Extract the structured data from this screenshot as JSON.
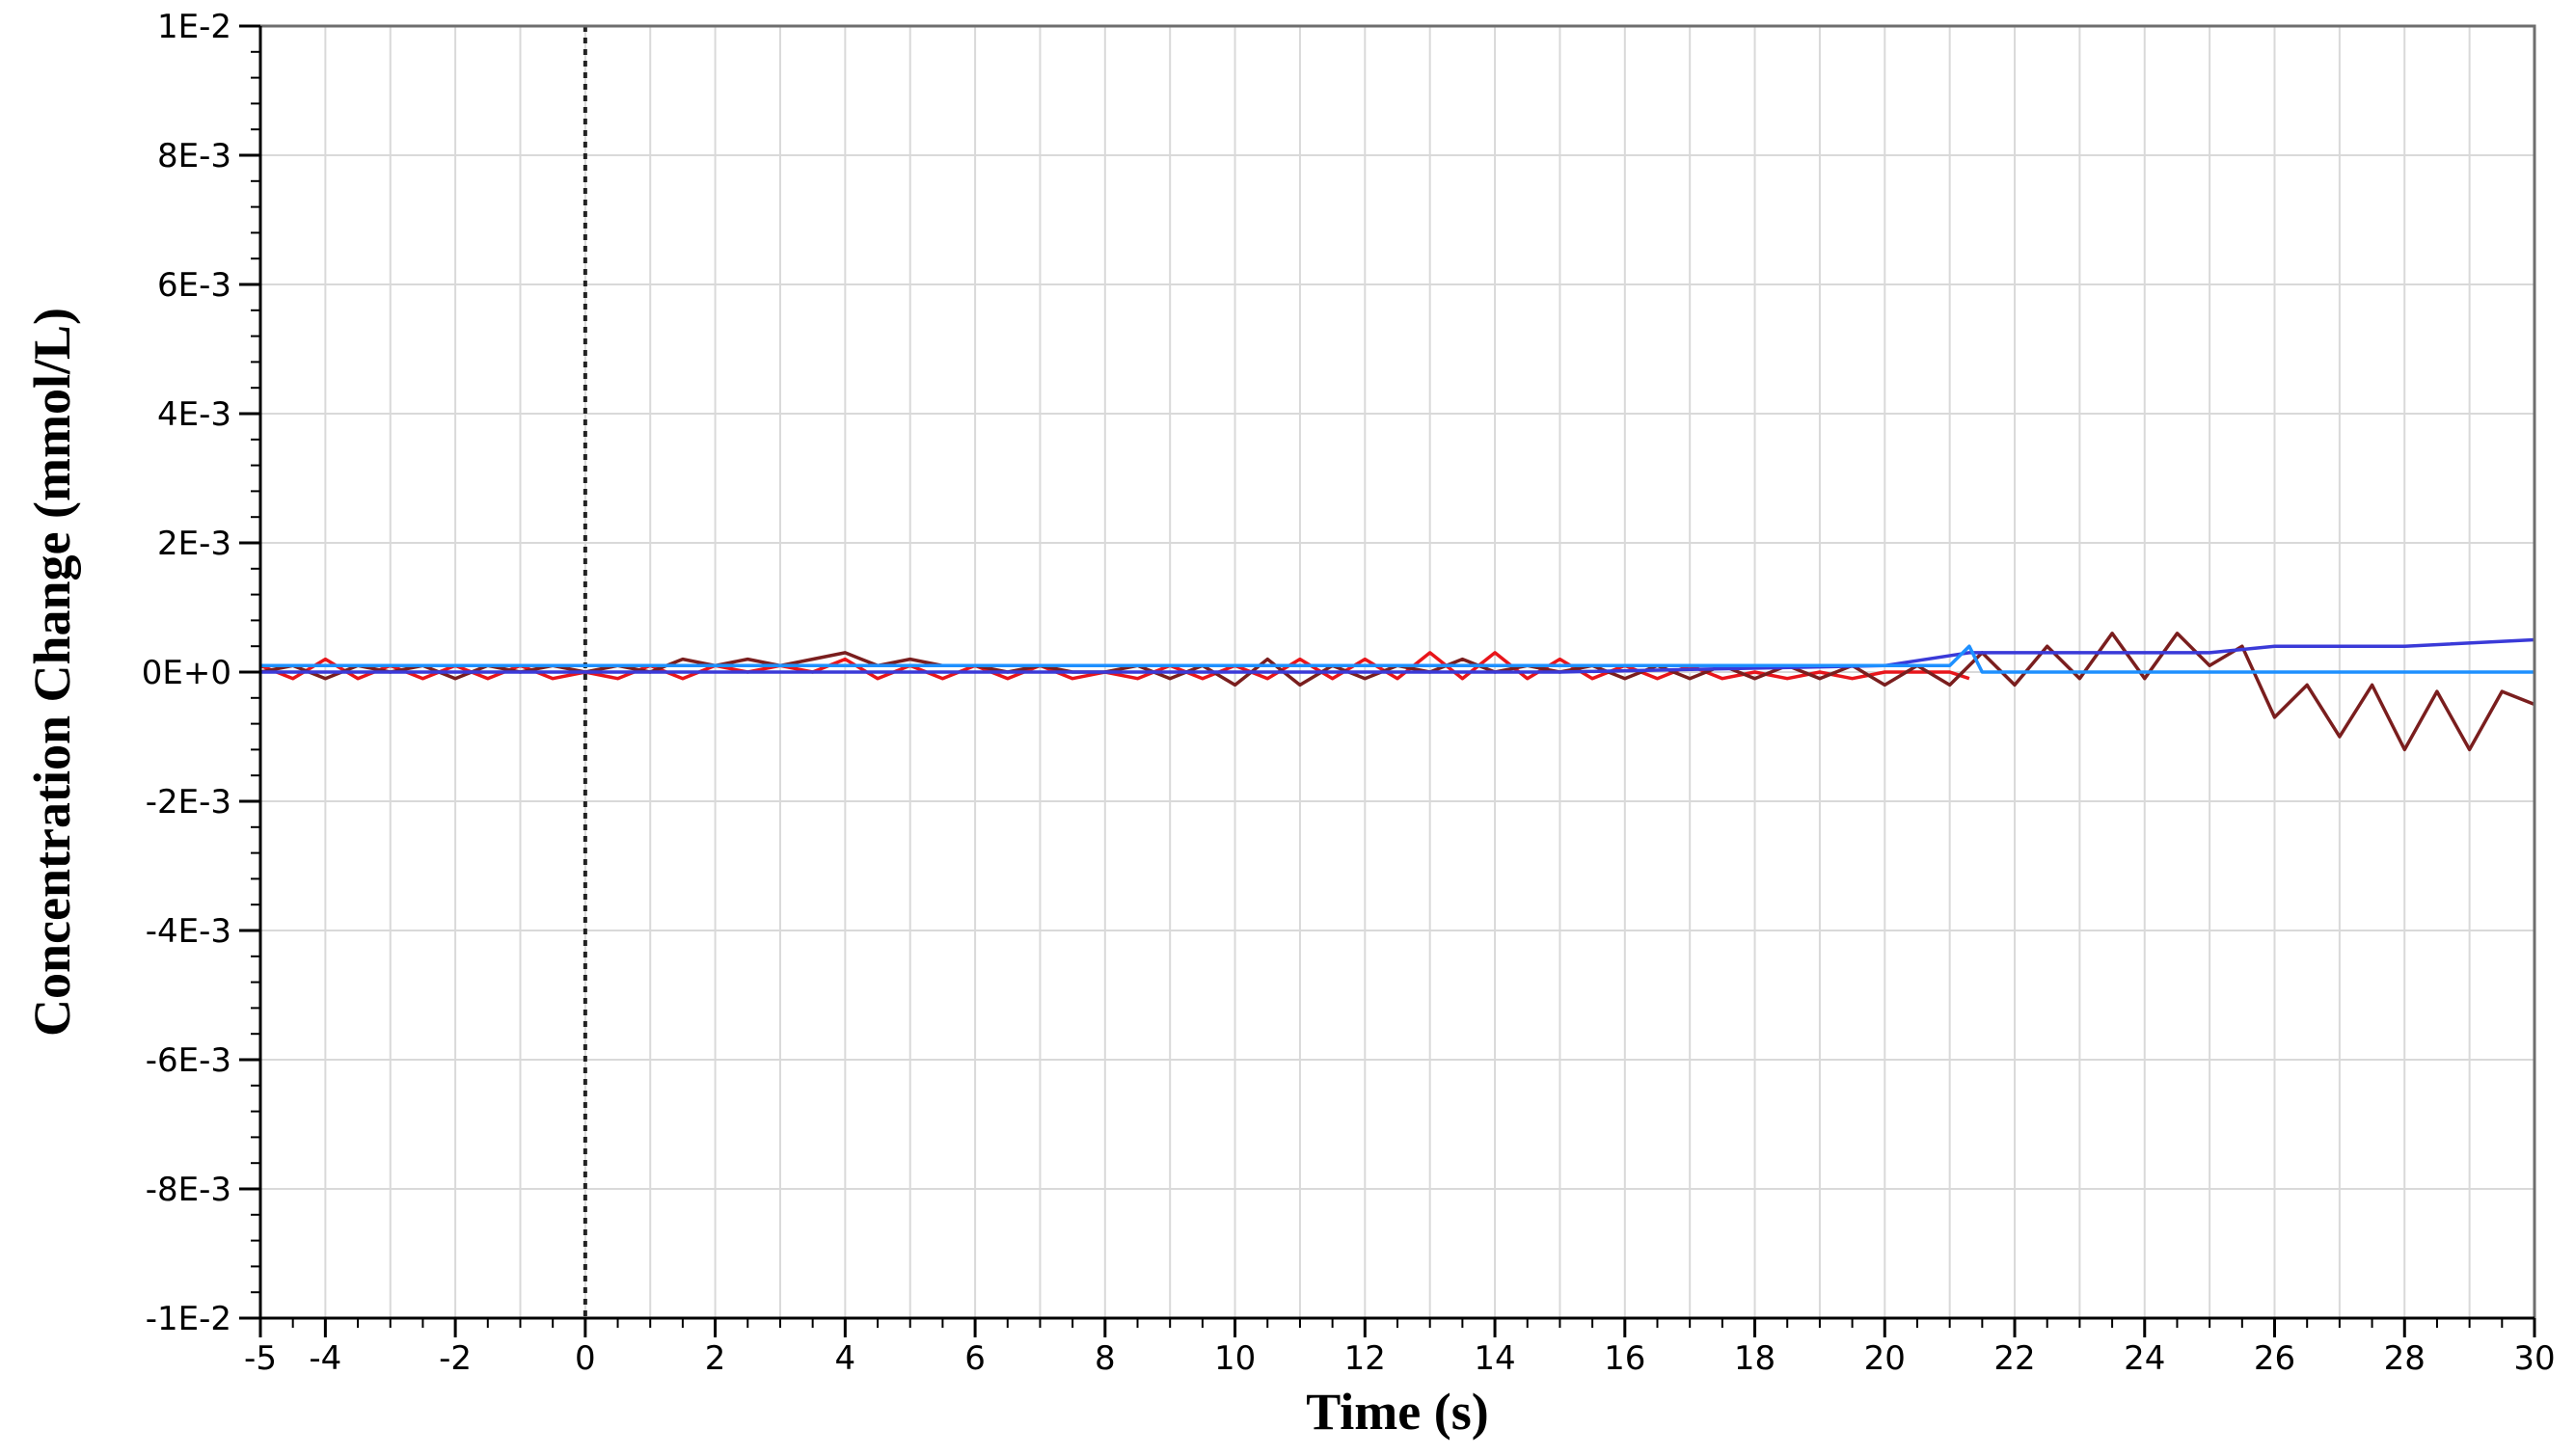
{
  "chart_data": {
    "type": "line",
    "title": "",
    "xlabel": "Time (s)",
    "ylabel": "Concentration Change (mmol/L)",
    "xlim": [
      -5,
      30
    ],
    "ylim": [
      -0.01,
      0.01
    ],
    "x_ticks": [
      -5,
      -4,
      -2,
      0,
      2,
      4,
      6,
      8,
      10,
      12,
      14,
      16,
      18,
      20,
      22,
      24,
      26,
      28,
      30
    ],
    "x_tick_labels": [
      "-5",
      "-4",
      "-2",
      "0",
      "2",
      "4",
      "6",
      "8",
      "10",
      "12",
      "14",
      "16",
      "18",
      "20",
      "22",
      "24",
      "26",
      "28",
      "30"
    ],
    "y_ticks": [
      0.01,
      0.008,
      0.006,
      0.004,
      0.002,
      0,
      -0.002,
      -0.004,
      -0.006,
      -0.008,
      -0.01
    ],
    "y_tick_labels": [
      "1E-2",
      "8E-3",
      "6E-3",
      "4E-3",
      "2E-3",
      "0E+0",
      "-2E-3",
      "-4E-3",
      "-6E-3",
      "-8E-3",
      "-1E-2"
    ],
    "grid": true,
    "legend": "none",
    "marker_line_x": 0,
    "colors": {
      "grid": "#d9d9d9",
      "red": "#e8151b",
      "dark_red": "#7a1e1e",
      "navy": "#3a3ad8",
      "light_blue": "#1e90ff"
    },
    "series": [
      {
        "color": "#e8151b",
        "x": [
          -5,
          -4.5,
          -4,
          -3.5,
          -3,
          -2.5,
          -2,
          -1.5,
          -1,
          -0.5,
          0,
          0.5,
          1,
          1.5,
          2,
          2.5,
          3,
          3.5,
          4,
          4.5,
          5,
          5.5,
          6,
          6.5,
          7,
          7.5,
          8,
          8.5,
          9,
          9.5,
          10,
          10.5,
          11,
          11.5,
          12,
          12.5,
          13,
          13.5,
          14,
          14.5,
          15,
          15.5,
          16,
          16.5,
          17,
          17.5,
          18,
          18.5,
          19,
          19.5,
          20,
          20.5,
          21,
          21.3
        ],
        "y": [
          0.0001,
          -0.0001,
          0.0002,
          -0.0001,
          0.0001,
          -0.0001,
          0.0001,
          -0.0001,
          0.0001,
          -0.0001,
          0,
          -0.0001,
          0.0001,
          -0.0001,
          0.0001,
          0,
          0.0001,
          0,
          0.0002,
          -0.0001,
          0.0001,
          -0.0001,
          0.0001,
          -0.0001,
          0.0001,
          -0.0001,
          0,
          -0.0001,
          0.0001,
          -0.0001,
          0.0001,
          -0.0001,
          0.0002,
          -0.0001,
          0.0002,
          -0.0001,
          0.0003,
          -0.0001,
          0.0003,
          -0.0001,
          0.0002,
          -0.0001,
          0.0001,
          -0.0001,
          0.0001,
          -0.0001,
          0,
          -0.0001,
          0,
          -0.0001,
          0,
          0,
          0,
          -0.0001
        ]
      },
      {
        "color": "#7a1e1e",
        "x": [
          -5,
          -4.5,
          -4,
          -3.5,
          -3,
          -2.5,
          -2,
          -1.5,
          -1,
          -0.5,
          0,
          0.5,
          1,
          1.5,
          2,
          2.5,
          3,
          3.5,
          4,
          4.5,
          5,
          5.5,
          6,
          6.5,
          7,
          7.5,
          8,
          8.5,
          9,
          9.5,
          10,
          10.5,
          11,
          11.5,
          12,
          12.5,
          13,
          13.5,
          14,
          14.5,
          15,
          15.5,
          16,
          16.5,
          17,
          17.5,
          18,
          18.5,
          19,
          19.5,
          20,
          20.5,
          21,
          21.5,
          22,
          22.5,
          23,
          23.5,
          24,
          24.5,
          25,
          25.5,
          26,
          26.5,
          27,
          27.5,
          28,
          28.5,
          29,
          29.5,
          30
        ],
        "y": [
          0,
          0.0001,
          -0.0001,
          0.0001,
          0,
          0.0001,
          -0.0001,
          0.0001,
          0,
          0.0001,
          0,
          0.0001,
          0,
          0.0002,
          0.0001,
          0.0002,
          0.0001,
          0.0002,
          0.0003,
          0.0001,
          0.0002,
          0.0001,
          0.0001,
          0,
          0.0001,
          0,
          0,
          0.0001,
          -0.0001,
          0.0001,
          -0.0002,
          0.0002,
          -0.0002,
          0.0001,
          -0.0001,
          0.0001,
          0,
          0.0002,
          0,
          0.0001,
          0,
          0.0001,
          -0.0001,
          0.0001,
          -0.0001,
          0.0001,
          -0.0001,
          0.0001,
          -0.0001,
          0.0001,
          -0.0002,
          0.0001,
          -0.0002,
          0.0003,
          -0.0002,
          0.0004,
          -0.0001,
          0.0006,
          -0.0001,
          0.0006,
          0.0001,
          0.0004,
          -0.0007,
          -0.0002,
          -0.001,
          -0.0002,
          -0.0012,
          -0.0003,
          -0.0012,
          -0.0003,
          -0.0005
        ]
      },
      {
        "color": "#3a3ad8",
        "x": [
          -5,
          0,
          5,
          10,
          15,
          20,
          21.3,
          22,
          24,
          25,
          26,
          28,
          30
        ],
        "y": [
          0,
          0,
          0,
          0,
          0,
          0.0001,
          0.0003,
          0.0003,
          0.0003,
          0.0003,
          0.0004,
          0.0004,
          0.0005
        ]
      },
      {
        "color": "#1e90ff",
        "x": [
          -5,
          0,
          5,
          10,
          15,
          20,
          21,
          21.3,
          21.5,
          22,
          25,
          30
        ],
        "y": [
          0.0001,
          0.0001,
          0.0001,
          0.0001,
          0.0001,
          0.0001,
          0.0001,
          0.0004,
          0,
          0,
          0,
          0
        ]
      }
    ]
  }
}
